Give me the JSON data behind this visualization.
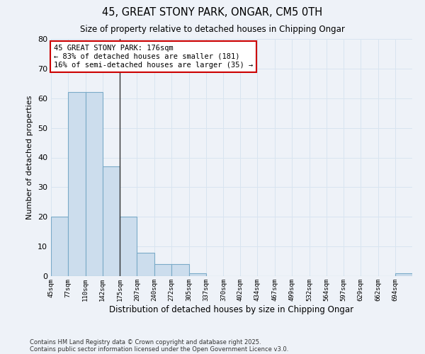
{
  "title1": "45, GREAT STONY PARK, ONGAR, CM5 0TH",
  "title2": "Size of property relative to detached houses in Chipping Ongar",
  "xlabel": "Distribution of detached houses by size in Chipping Ongar",
  "ylabel": "Number of detached properties",
  "bin_labels": [
    "45sqm",
    "77sqm",
    "110sqm",
    "142sqm",
    "175sqm",
    "207sqm",
    "240sqm",
    "272sqm",
    "305sqm",
    "337sqm",
    "370sqm",
    "402sqm",
    "434sqm",
    "467sqm",
    "499sqm",
    "532sqm",
    "564sqm",
    "597sqm",
    "629sqm",
    "662sqm",
    "694sqm"
  ],
  "bin_edges": [
    45,
    77,
    110,
    142,
    175,
    207,
    240,
    272,
    305,
    337,
    370,
    402,
    434,
    467,
    499,
    532,
    564,
    597,
    629,
    662,
    694,
    726
  ],
  "bar_heights": [
    20,
    62,
    62,
    37,
    20,
    8,
    4,
    4,
    1,
    0,
    0,
    0,
    0,
    0,
    0,
    0,
    0,
    0,
    0,
    0,
    1
  ],
  "bar_color": "#ccdded",
  "bar_edge_color": "#7aaac8",
  "vline_x": 175,
  "vline_color": "#333333",
  "annotation_line1": "45 GREAT STONY PARK: 176sqm",
  "annotation_line2": "← 83% of detached houses are smaller (181)",
  "annotation_line3": "16% of semi-detached houses are larger (35) →",
  "annotation_box_color": "#ffffff",
  "annotation_box_edge": "#cc0000",
  "ylim": [
    0,
    80
  ],
  "yticks": [
    0,
    10,
    20,
    30,
    40,
    50,
    60,
    70,
    80
  ],
  "grid_color": "#d8e4f0",
  "bg_color": "#eef2f8",
  "footnote1": "Contains HM Land Registry data © Crown copyright and database right 2025.",
  "footnote2": "Contains public sector information licensed under the Open Government Licence v3.0."
}
